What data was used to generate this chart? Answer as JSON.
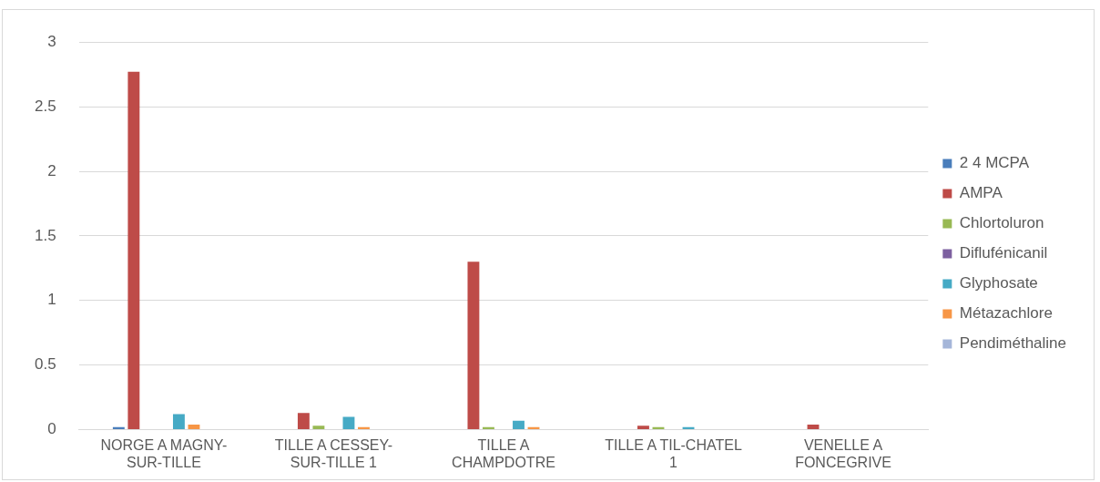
{
  "chart_data": {
    "type": "bar",
    "categories": [
      "NORGE A MAGNY-SUR-TILLE",
      "TILLE A CESSEY-SUR-TILLE 1",
      "TILLE A CHAMPDOTRE",
      "TILLE A TIL-CHATEL 1",
      "VENELLE A FONCEGRIVE"
    ],
    "series": [
      {
        "name": "2 4 MCPA",
        "color": "#4a7ebb",
        "values": [
          0.02,
          null,
          null,
          null,
          null
        ]
      },
      {
        "name": "AMPA",
        "color": "#be4b48",
        "values": [
          2.77,
          0.13,
          1.3,
          0.03,
          0.04
        ]
      },
      {
        "name": "Chlortoluron",
        "color": "#98b954",
        "values": [
          null,
          0.03,
          0.02,
          0.02,
          null
        ]
      },
      {
        "name": "Diflufénicanil",
        "color": "#7d60a0",
        "values": [
          null,
          null,
          null,
          null,
          null
        ]
      },
      {
        "name": "Glyphosate",
        "color": "#46aac5",
        "values": [
          0.12,
          0.1,
          0.07,
          0.02,
          null
        ]
      },
      {
        "name": "Métazachlore",
        "color": "#f79646",
        "values": [
          0.04,
          0.02,
          0.02,
          null,
          null
        ]
      },
      {
        "name": "Pendiméthaline",
        "color": "#a5b6d9",
        "values": [
          null,
          null,
          null,
          null,
          null
        ]
      }
    ],
    "ylim": [
      0,
      3
    ],
    "yticks": [
      0,
      0.5,
      1,
      1.5,
      2,
      2.5,
      3
    ],
    "grid": "y",
    "legend": "right"
  }
}
